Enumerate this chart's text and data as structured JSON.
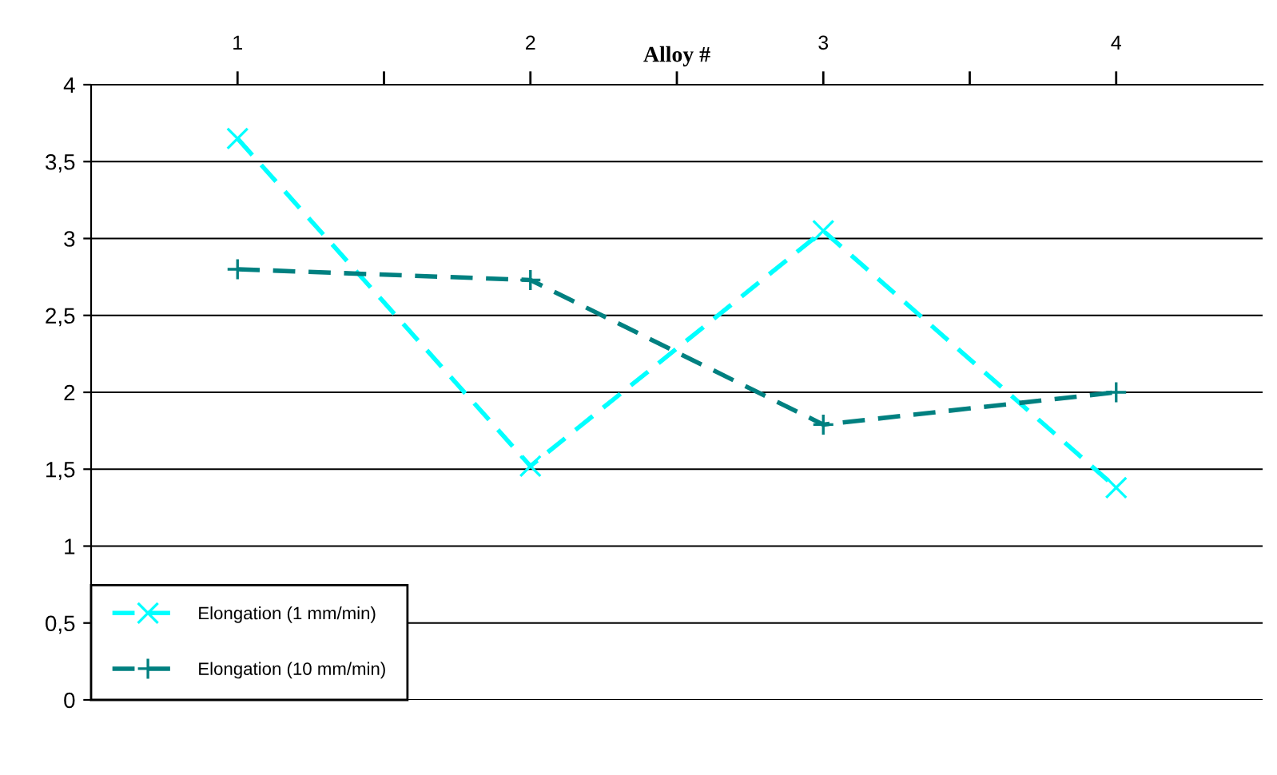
{
  "chart_data": {
    "type": "line",
    "xlabel": "Alloy #",
    "x": [
      1,
      2,
      3,
      4
    ],
    "series": [
      {
        "name": "Elongation (1 mm/min)",
        "color": "#00ffff",
        "values": [
          3.65,
          1.52,
          3.05,
          1.38
        ],
        "marker": "cross"
      },
      {
        "name": "Elongation (10 mm/min)",
        "color": "#008080",
        "values": [
          2.8,
          2.73,
          1.79,
          2.0
        ],
        "marker": "plus"
      }
    ],
    "xlim": [
      0.5,
      4.5
    ],
    "xticks": [
      1,
      {
        "value": 1.5,
        "label": null
      },
      2,
      {
        "value": 2.5,
        "label": null
      },
      3,
      {
        "value": 3.5,
        "label": null
      },
      4
    ],
    "ylim": [
      0,
      4
    ],
    "yticks": [
      0,
      {
        "value": 0.5,
        "label": "0,5"
      },
      1,
      {
        "value": 1.5,
        "label": "1,5"
      },
      2,
      {
        "value": 2.5,
        "label": "2,5"
      },
      3,
      {
        "value": 3.5,
        "label": "3,5"
      },
      4
    ],
    "grid": "y",
    "legend": "bottom left",
    "line_style": "dashed"
  }
}
